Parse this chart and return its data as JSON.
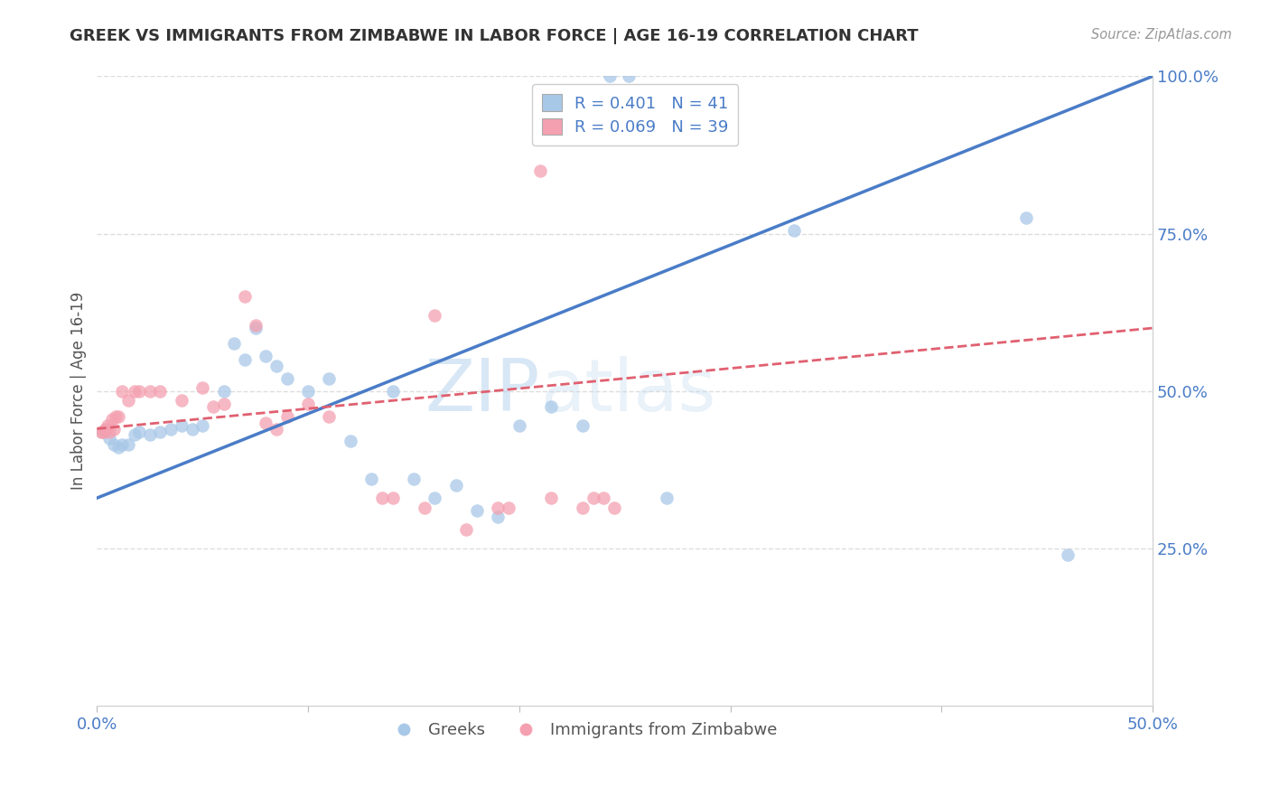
{
  "title": "GREEK VS IMMIGRANTS FROM ZIMBABWE IN LABOR FORCE | AGE 16-19 CORRELATION CHART",
  "source": "Source: ZipAtlas.com",
  "ylabel": "In Labor Force | Age 16-19",
  "xlim": [
    0.0,
    0.5
  ],
  "ylim": [
    0.0,
    1.0
  ],
  "blue_color": "#A8C8E8",
  "pink_color": "#F4A0B0",
  "blue_line_color": "#4A7CC7",
  "pink_line_color": "#E06070",
  "legend_blue_label": "R = 0.401   N = 41",
  "legend_pink_label": "R = 0.069   N = 39",
  "legend_label_greeks": "Greeks",
  "legend_label_zimbabwe": "Immigrants from Zimbabwe",
  "blue_scatter_x": [
    0.243,
    0.252,
    0.003,
    0.004,
    0.006,
    0.008,
    0.01,
    0.012,
    0.015,
    0.018,
    0.02,
    0.025,
    0.03,
    0.035,
    0.04,
    0.045,
    0.05,
    0.06,
    0.065,
    0.07,
    0.075,
    0.08,
    0.085,
    0.09,
    0.1,
    0.11,
    0.12,
    0.13,
    0.14,
    0.15,
    0.16,
    0.17,
    0.18,
    0.19,
    0.2,
    0.215,
    0.23,
    0.27,
    0.33,
    0.44,
    0.46
  ],
  "blue_scatter_y": [
    1.0,
    1.0,
    0.435,
    0.44,
    0.425,
    0.415,
    0.41,
    0.415,
    0.415,
    0.43,
    0.435,
    0.43,
    0.435,
    0.44,
    0.445,
    0.44,
    0.445,
    0.5,
    0.575,
    0.55,
    0.6,
    0.555,
    0.54,
    0.52,
    0.5,
    0.52,
    0.42,
    0.36,
    0.5,
    0.36,
    0.33,
    0.35,
    0.31,
    0.3,
    0.445,
    0.475,
    0.445,
    0.33,
    0.755,
    0.775,
    0.24
  ],
  "pink_scatter_x": [
    0.002,
    0.003,
    0.004,
    0.005,
    0.006,
    0.007,
    0.008,
    0.009,
    0.01,
    0.012,
    0.015,
    0.018,
    0.02,
    0.025,
    0.03,
    0.04,
    0.05,
    0.055,
    0.06,
    0.07,
    0.075,
    0.08,
    0.085,
    0.09,
    0.1,
    0.11,
    0.135,
    0.14,
    0.155,
    0.16,
    0.175,
    0.19,
    0.195,
    0.21,
    0.215,
    0.23,
    0.235,
    0.24,
    0.245
  ],
  "pink_scatter_y": [
    0.435,
    0.435,
    0.44,
    0.445,
    0.435,
    0.455,
    0.44,
    0.46,
    0.46,
    0.5,
    0.485,
    0.5,
    0.5,
    0.5,
    0.5,
    0.485,
    0.505,
    0.475,
    0.48,
    0.65,
    0.605,
    0.45,
    0.44,
    0.46,
    0.48,
    0.46,
    0.33,
    0.33,
    0.315,
    0.62,
    0.28,
    0.315,
    0.315,
    0.85,
    0.33,
    0.315,
    0.33,
    0.33,
    0.315
  ],
  "blue_line_x": [
    0.0,
    0.5
  ],
  "blue_line_y": [
    0.33,
    1.0
  ],
  "pink_line_x": [
    0.0,
    0.5
  ],
  "pink_line_y": [
    0.44,
    0.6
  ],
  "watermark_zip": "ZIP",
  "watermark_atlas": "atlas",
  "background_color": "#FFFFFF",
  "grid_color": "#DDDDDD",
  "grid_style": "--",
  "yticks": [
    0.0,
    0.25,
    0.5,
    0.75,
    1.0
  ],
  "ytick_labels": [
    "",
    "25.0%",
    "50.0%",
    "75.0%",
    "100.0%"
  ],
  "xticks": [
    0.0,
    0.1,
    0.2,
    0.3,
    0.4,
    0.5
  ],
  "xtick_labels": [
    "0.0%",
    "",
    "",
    "",
    "",
    "50.0%"
  ]
}
